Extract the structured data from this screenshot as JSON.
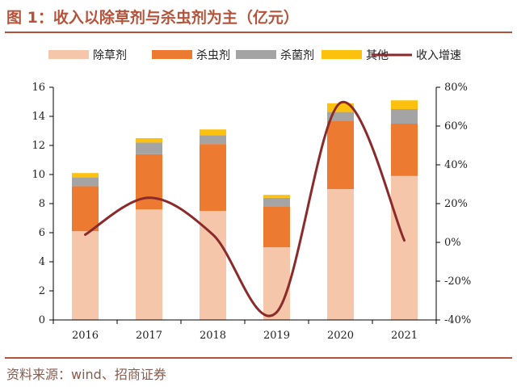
{
  "header": {
    "title": "图 1：收入以除草剂与杀虫剂为主（亿元）"
  },
  "footer": {
    "source": "资料来源：wind、招商证券"
  },
  "chart_data": {
    "type": "bar",
    "stacked": true,
    "categories": [
      "2016",
      "2017",
      "2018",
      "2019",
      "2020",
      "2021"
    ],
    "series": [
      {
        "name": "除草剂",
        "values": [
          6.1,
          7.6,
          7.5,
          5.0,
          9.0,
          9.9
        ],
        "color": "#f6c6ab"
      },
      {
        "name": "杀虫剂",
        "values": [
          3.1,
          3.8,
          4.6,
          2.8,
          4.7,
          3.6
        ],
        "color": "#ec7b31"
      },
      {
        "name": "杀菌剂",
        "values": [
          0.6,
          0.8,
          0.6,
          0.6,
          0.6,
          1.0
        ],
        "color": "#a4a4a4"
      },
      {
        "name": "其他",
        "values": [
          0.3,
          0.3,
          0.4,
          0.2,
          0.6,
          0.6
        ],
        "color": "#fcc10f"
      }
    ],
    "line_series": {
      "name": "收入增速",
      "values": [
        0.04,
        0.23,
        0.04,
        -0.36,
        0.72,
        0.01
      ],
      "color": "#8b2a2a",
      "axis": "right"
    },
    "y_left": {
      "min": 0,
      "max": 16,
      "ticks": [
        "0",
        "2",
        "4",
        "6",
        "8",
        "10",
        "12",
        "14",
        "16"
      ]
    },
    "y_right": {
      "min": -0.4,
      "max": 0.8,
      "ticks": [
        "-40%",
        "-20%",
        "0%",
        "20%",
        "40%",
        "60%",
        "80%"
      ]
    },
    "grid": false,
    "legend": "top"
  }
}
